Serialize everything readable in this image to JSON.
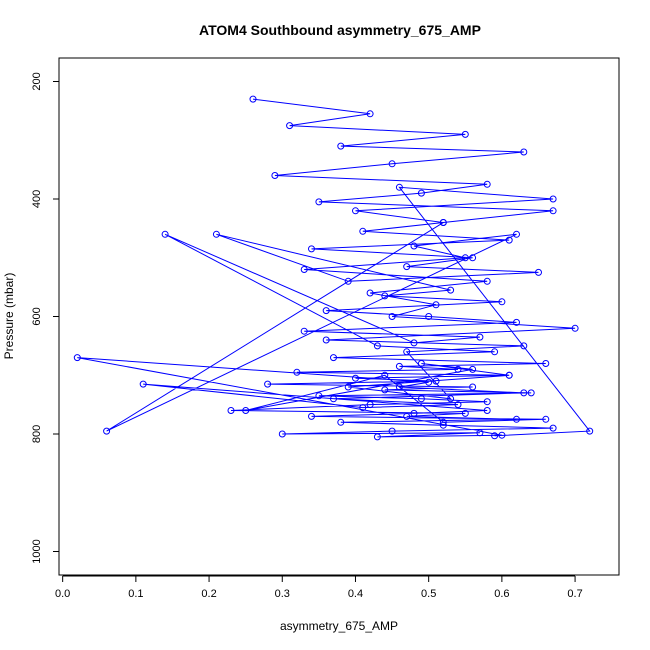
{
  "chart_data": {
    "type": "scatter",
    "title": "ATOM4 Southbound asymmetry_675_AMP",
    "xlabel": "asymmetry_675_AMP",
    "ylabel": "Pressure (mbar)",
    "x_ticks": [
      "0.0",
      "0.1",
      "0.2",
      "0.3",
      "0.4",
      "0.5",
      "0.6",
      "0.7"
    ],
    "y_ticks": [
      "200",
      "400",
      "600",
      "800",
      "1000"
    ],
    "xlim": [
      -0.005,
      0.76
    ],
    "ylim": [
      1040,
      160
    ],
    "y_inverted": true,
    "grid": false,
    "marker": "open-circle",
    "connected": true,
    "color": "#0000ff",
    "series": [
      {
        "x": [
          0.26,
          0.42,
          0.31,
          0.55,
          0.38,
          0.63,
          0.45,
          0.29,
          0.58,
          0.49,
          0.35,
          0.67,
          0.52,
          0.41,
          0.61,
          0.34,
          0.56,
          0.47,
          0.65,
          0.39,
          0.21,
          0.53,
          0.44,
          0.6,
          0.36,
          0.5,
          0.62,
          0.33,
          0.57,
          0.48,
          0.14,
          0.43,
          0.59,
          0.37,
          0.66,
          0.46,
          0.54,
          0.32,
          0.61,
          0.4,
          0.51,
          0.28,
          0.56,
          0.44,
          0.64,
          0.35,
          0.49,
          0.58,
          0.42,
          0.23,
          0.55,
          0.47,
          0.62,
          0.38,
          0.52,
          0.67,
          0.45,
          0.3,
          0.57,
          0.43,
          0.6,
          0.02,
          0.5,
          0.46,
          0.63,
          0.37,
          0.54,
          0.41,
          0.11,
          0.58,
          0.48,
          0.34,
          0.66,
          0.52,
          0.44,
          0.25,
          0.56,
          0.49,
          0.61,
          0.39,
          0.53,
          0.47,
          0.63,
          0.36,
          0.7,
          0.45,
          0.51,
          0.42,
          0.58,
          0.33,
          0.55,
          0.48,
          0.62,
          0.06,
          0.52,
          0.4,
          0.67,
          0.46,
          0.72,
          0.59
        ],
        "y": [
          230,
          255,
          275,
          290,
          310,
          320,
          340,
          360,
          375,
          390,
          405,
          420,
          440,
          455,
          470,
          485,
          500,
          515,
          525,
          540,
          460,
          555,
          565,
          575,
          590,
          600,
          610,
          625,
          635,
          645,
          460,
          650,
          660,
          670,
          680,
          685,
          690,
          695,
          700,
          705,
          710,
          715,
          720,
          725,
          730,
          735,
          740,
          745,
          750,
          760,
          765,
          770,
          775,
          780,
          785,
          790,
          795,
          800,
          798,
          805,
          802,
          670,
          712,
          720,
          730,
          740,
          750,
          755,
          715,
          760,
          765,
          770,
          775,
          780,
          700,
          760,
          690,
          680,
          700,
          720,
          740,
          660,
          650,
          640,
          620,
          600,
          580,
          560,
          540,
          520,
          500,
          480,
          460,
          795,
          440,
          420,
          400,
          380,
          795,
          803
        ]
      }
    ]
  }
}
